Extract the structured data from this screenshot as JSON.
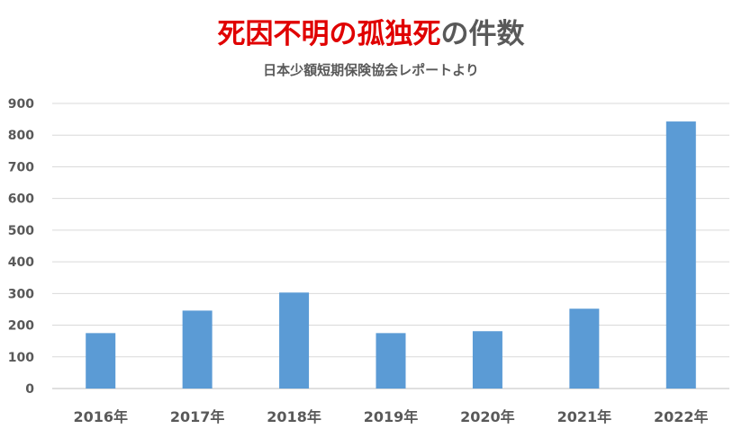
{
  "title": {
    "part1": "死因不明の孤独死",
    "part2": "の件数",
    "part1_color": "#e00000",
    "part2_color": "#595959"
  },
  "subtitle": "日本少額短期保険協会レポートより",
  "chart_data": {
    "type": "bar",
    "title": "死因不明の孤独死の件数",
    "subtitle": "日本少額短期保険協会レポートより",
    "categories": [
      "2016年",
      "2017年",
      "2018年",
      "2019年",
      "2020年",
      "2021年",
      "2022年"
    ],
    "values": [
      175,
      246,
      303,
      175,
      181,
      252,
      843
    ],
    "ylim": [
      0,
      900
    ],
    "yticks": [
      0,
      100,
      200,
      300,
      400,
      500,
      600,
      700,
      800,
      900
    ],
    "xlabel": "",
    "ylabel": "",
    "grid": true,
    "legend": "none",
    "bar_color": "#5b9bd5",
    "grid_color": "#d9d9d9"
  }
}
